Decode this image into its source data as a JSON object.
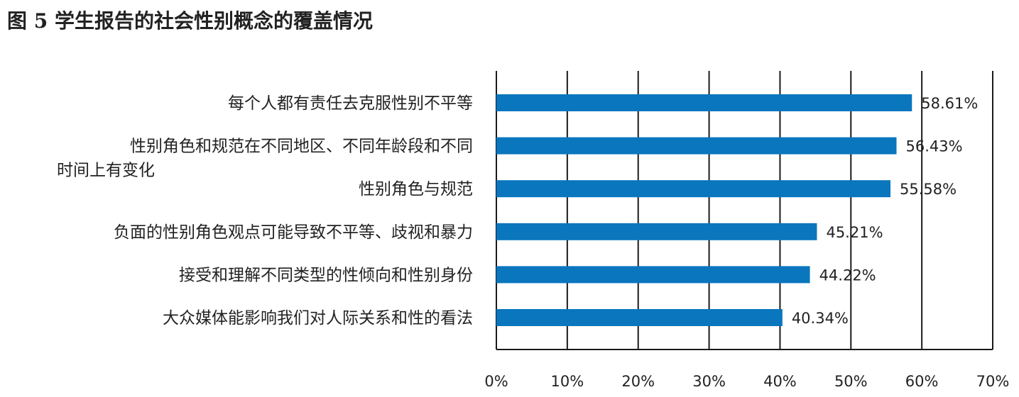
{
  "figure_title": "图 5 学生报告的社会性别概念的覆盖情况",
  "chart_data": {
    "type": "bar",
    "orientation": "horizontal",
    "title": "图 5 学生报告的社会性别概念的覆盖情况",
    "xlabel": "",
    "ylabel": "",
    "xlim": [
      0,
      70
    ],
    "x_ticks": [
      0,
      10,
      20,
      30,
      40,
      50,
      60,
      70
    ],
    "x_tick_labels": [
      "0%",
      "10%",
      "20%",
      "30%",
      "40%",
      "50%",
      "60%",
      "70%"
    ],
    "grid": "vertical",
    "legend": "none",
    "bar_color": "#0a76be",
    "categories": [
      "每个人都有责任去克服性别不平等",
      "性别角色和规范在不同地区、不同年龄段和不同时间上有变化",
      "性别角色与规范",
      "负面的性别角色观点可能导致不平等、歧视和暴力",
      "接受和理解不同类型的性倾向和性别身份",
      "大众媒体能影响我们对人际关系和性的看法"
    ],
    "category_lines": [
      [
        "每个人都有责任去克服性别不平等"
      ],
      [
        "性别角色和规范在不同地区、不同年龄段和不同",
        "时间上有变化"
      ],
      [
        "性别角色与规范"
      ],
      [
        "负面的性别角色观点可能导致不平等、歧视和暴力"
      ],
      [
        "接受和理解不同类型的性倾向和性别身份"
      ],
      [
        "大众媒体能影响我们对人际关系和性的看法"
      ]
    ],
    "values": [
      58.61,
      56.43,
      55.58,
      45.21,
      44.22,
      40.34
    ],
    "data_labels": [
      "58.61%",
      "56.43%",
      "55.58%",
      "45.21%",
      "44.22%",
      "40.34%"
    ]
  }
}
